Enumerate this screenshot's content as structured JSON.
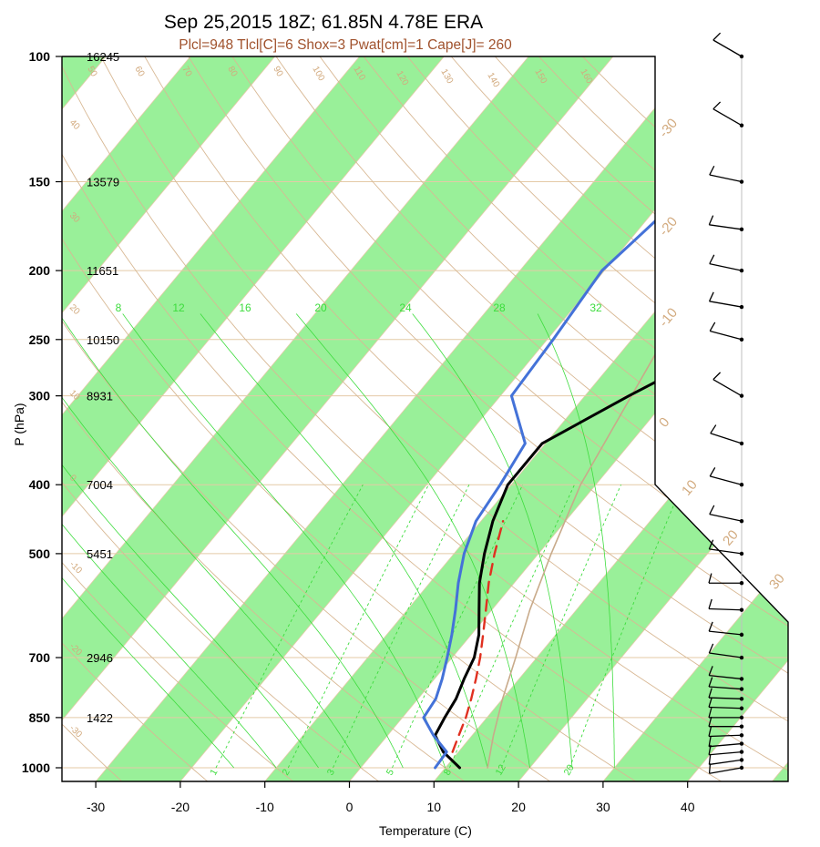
{
  "chart_data": {
    "type": "line",
    "title": "Sep 25,2015 18Z; 61.85N 4.78E ERA",
    "subtitle": "Plcl=948 Tlcl[C]=6 Shox=3 Pwat[cm]=1 Cape[J]= 260",
    "xlabel": "Temperature (C)",
    "ylabel": "P (hPa)",
    "xlim": [
      -33,
      52
    ],
    "ylim": [
      1050,
      100
    ],
    "x_ticks": [
      "-30",
      "-20",
      "-10",
      "0",
      "10",
      "20",
      "30",
      "40"
    ],
    "y_ticks": [
      {
        "p": 100,
        "label": "100",
        "height": "16245"
      },
      {
        "p": 150,
        "label": "150",
        "height": "13579"
      },
      {
        "p": 200,
        "label": "200",
        "height": "11651"
      },
      {
        "p": 250,
        "label": "250",
        "height": "10150"
      },
      {
        "p": 300,
        "label": "300",
        "height": "8931"
      },
      {
        "p": 400,
        "label": "400",
        "height": "7004"
      },
      {
        "p": 500,
        "label": "500",
        "height": "5451"
      },
      {
        "p": 700,
        "label": "700",
        "height": "2946"
      },
      {
        "p": 850,
        "label": "850",
        "height": "1422"
      },
      {
        "p": 1000,
        "label": "1000",
        "height": ""
      }
    ],
    "mixing_ratio_labels": [
      "1",
      "2",
      "3",
      "5",
      "8",
      "12",
      "20"
    ],
    "theta_e_labels": [
      "8",
      "12",
      "16",
      "20",
      "24",
      "28",
      "32"
    ],
    "isotherm_labels_outside": [
      "-30",
      "-20",
      "-10",
      "0",
      "10",
      "20",
      "30"
    ],
    "theta_labels_left": [
      "40",
      "30",
      "20",
      "10",
      "0",
      "-10",
      "-20",
      "-30"
    ],
    "theta_labels_top": [
      "50",
      "60",
      "70",
      "80",
      "90",
      "100",
      "110",
      "120",
      "130",
      "140",
      "150",
      "160"
    ],
    "series": [
      {
        "name": "Temperature",
        "color": "#000000",
        "points": [
          [
            1000,
            11.7
          ],
          [
            950,
            8.2
          ],
          [
            900,
            5.6
          ],
          [
            850,
            5.0
          ],
          [
            800,
            4.5
          ],
          [
            750,
            3.5
          ],
          [
            700,
            2.6
          ],
          [
            650,
            0.9
          ],
          [
            600,
            -1.5
          ],
          [
            550,
            -4.1
          ],
          [
            500,
            -6.4
          ],
          [
            450,
            -8.6
          ],
          [
            400,
            -10.4
          ],
          [
            350,
            -10.4
          ],
          [
            300,
            -4.8
          ],
          [
            250,
            2.5
          ],
          [
            200,
            10.1
          ],
          [
            175,
            13.9
          ],
          [
            150,
            17.3
          ],
          [
            125,
            20.3
          ],
          [
            100,
            24.6
          ]
        ]
      },
      {
        "name": "Dewpoint",
        "color": "#4472d8",
        "points": [
          [
            1000,
            8.8
          ],
          [
            950,
            8.6
          ],
          [
            900,
            5.4
          ],
          [
            850,
            2.5
          ],
          [
            800,
            2.1
          ],
          [
            750,
            0.9
          ],
          [
            700,
            -0.6
          ],
          [
            650,
            -2.3
          ],
          [
            600,
            -4.3
          ],
          [
            550,
            -6.6
          ],
          [
            500,
            -8.8
          ],
          [
            450,
            -10.6
          ],
          [
            400,
            -11.3
          ],
          [
            350,
            -12.4
          ],
          [
            300,
            -18.7
          ],
          [
            250,
            -19.3
          ],
          [
            200,
            -20.3
          ],
          [
            150,
            -17.7
          ],
          [
            125,
            -14.0
          ],
          [
            100,
            -8.0
          ]
        ]
      },
      {
        "name": "Parcel",
        "color": "#e03020",
        "style": "dashed",
        "points": [
          [
            950,
            9.3
          ],
          [
            900,
            8.4
          ],
          [
            850,
            7.5
          ],
          [
            800,
            6.3
          ],
          [
            750,
            4.9
          ],
          [
            700,
            3.3
          ],
          [
            650,
            1.4
          ],
          [
            600,
            -0.7
          ],
          [
            550,
            -3.0
          ],
          [
            500,
            -5.2
          ],
          [
            450,
            -7.4
          ]
        ]
      },
      {
        "name": "Virtual/Env tan",
        "color": "#c8aa8a",
        "points": [
          [
            1000,
            15.0
          ],
          [
            900,
            12.5
          ],
          [
            800,
            10.0
          ],
          [
            700,
            7.5
          ],
          [
            600,
            4.5
          ],
          [
            500,
            1.5
          ],
          [
            400,
            -1.8
          ],
          [
            300,
            -4.5
          ],
          [
            230,
            -7.0
          ]
        ]
      }
    ],
    "wind_barbs": [
      {
        "p": 1000,
        "dir": 260,
        "kt": 20
      },
      {
        "p": 975,
        "dir": 262,
        "kt": 20
      },
      {
        "p": 950,
        "dir": 265,
        "kt": 20
      },
      {
        "p": 925,
        "dir": 265,
        "kt": 20
      },
      {
        "p": 900,
        "dir": 268,
        "kt": 20
      },
      {
        "p": 875,
        "dir": 270,
        "kt": 20
      },
      {
        "p": 850,
        "dir": 270,
        "kt": 20
      },
      {
        "p": 825,
        "dir": 272,
        "kt": 20
      },
      {
        "p": 800,
        "dir": 272,
        "kt": 20
      },
      {
        "p": 775,
        "dir": 274,
        "kt": 20
      },
      {
        "p": 750,
        "dir": 276,
        "kt": 20
      },
      {
        "p": 700,
        "dir": 278,
        "kt": 20
      },
      {
        "p": 650,
        "dir": 276,
        "kt": 20
      },
      {
        "p": 600,
        "dir": 272,
        "kt": 20
      },
      {
        "p": 550,
        "dir": 270,
        "kt": 20
      },
      {
        "p": 500,
        "dir": 278,
        "kt": 20
      },
      {
        "p": 450,
        "dir": 282,
        "kt": 20
      },
      {
        "p": 400,
        "dir": 285,
        "kt": 20
      },
      {
        "p": 350,
        "dir": 288,
        "kt": 20
      },
      {
        "p": 300,
        "dir": 300,
        "kt": 20
      },
      {
        "p": 250,
        "dir": 285,
        "kt": 20
      },
      {
        "p": 225,
        "dir": 280,
        "kt": 20
      },
      {
        "p": 200,
        "dir": 282,
        "kt": 20
      },
      {
        "p": 175,
        "dir": 278,
        "kt": 20
      },
      {
        "p": 150,
        "dir": 282,
        "kt": 20
      },
      {
        "p": 125,
        "dir": 300,
        "kt": 20
      },
      {
        "p": 100,
        "dir": 300,
        "kt": 20
      }
    ],
    "colors": {
      "band_green": "#99f099",
      "isotherm": "#e4caa6",
      "dry_adiabat": "#d8b894",
      "moist_adiabat": "#3ddc3d",
      "mixing_ratio": "#3ddc3d",
      "label_tan": "#d2aa7e"
    }
  }
}
